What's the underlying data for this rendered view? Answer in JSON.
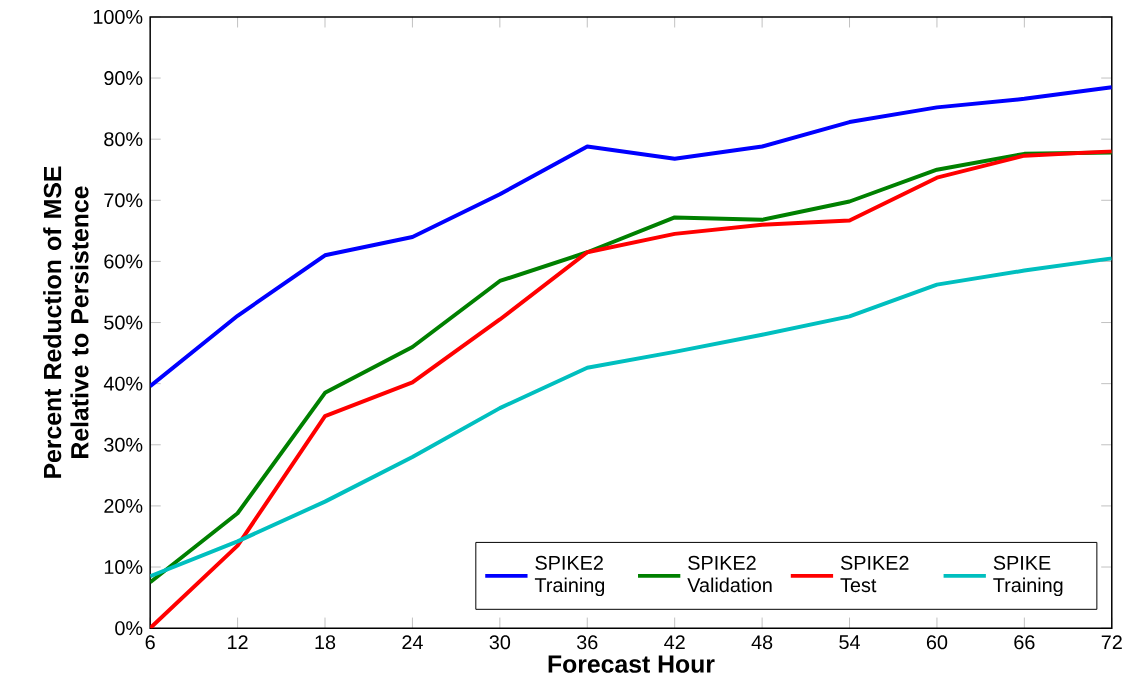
{
  "chart_data": {
    "type": "line",
    "xlabel": "Forecast Hour",
    "ylabel": "Percent Reduction of MSE Relative to Persistence",
    "x": [
      6,
      12,
      18,
      24,
      30,
      36,
      42,
      48,
      54,
      60,
      66,
      72
    ],
    "series": [
      {
        "name": "SPIKE2 Training",
        "color": "#0000ff",
        "values": [
          39.6,
          51.1,
          61.0,
          64.0,
          71.0,
          78.8,
          76.8,
          78.8,
          82.8,
          85.2,
          86.6,
          88.5
        ]
      },
      {
        "name": "SPIKE2 Validation",
        "color": "#008000",
        "values": [
          7.5,
          18.8,
          38.5,
          46.0,
          56.8,
          61.5,
          67.2,
          66.8,
          69.8,
          75.0,
          77.6,
          77.8
        ]
      },
      {
        "name": "SPIKE2 Test",
        "color": "#ff0000",
        "values": [
          0,
          13.5,
          34.7,
          40.2,
          50.5,
          61.5,
          64.5,
          66.0,
          66.7,
          73.7,
          77.3,
          78.0
        ]
      },
      {
        "name": "SPIKE Training",
        "color": "#00bfbf",
        "values": [
          8.5,
          14.2,
          20.7,
          28.0,
          36.0,
          42.6,
          45.2,
          48.0,
          51.0,
          56.2,
          58.5,
          60.5
        ]
      }
    ],
    "xlim": [
      6,
      72
    ],
    "xticks": [
      6,
      12,
      18,
      24,
      30,
      36,
      42,
      48,
      54,
      60,
      66,
      72
    ],
    "ylim": [
      0,
      100
    ],
    "yticks": [
      {
        "value": 0,
        "label": "0%"
      },
      {
        "value": 10,
        "label": "10%"
      },
      {
        "value": 20,
        "label": "20%"
      },
      {
        "value": 30,
        "label": "30%"
      },
      {
        "value": 40,
        "label": "40%"
      },
      {
        "value": 50,
        "label": "50%"
      },
      {
        "value": 60,
        "label": "60%"
      },
      {
        "value": 70,
        "label": "70%"
      },
      {
        "value": 80,
        "label": "80%"
      },
      {
        "value": 90,
        "label": "90%"
      },
      {
        "value": 100,
        "label": "100%"
      }
    ],
    "legend": "bottom right",
    "grid": false,
    "marker": "none",
    "line_style": "solid"
  }
}
